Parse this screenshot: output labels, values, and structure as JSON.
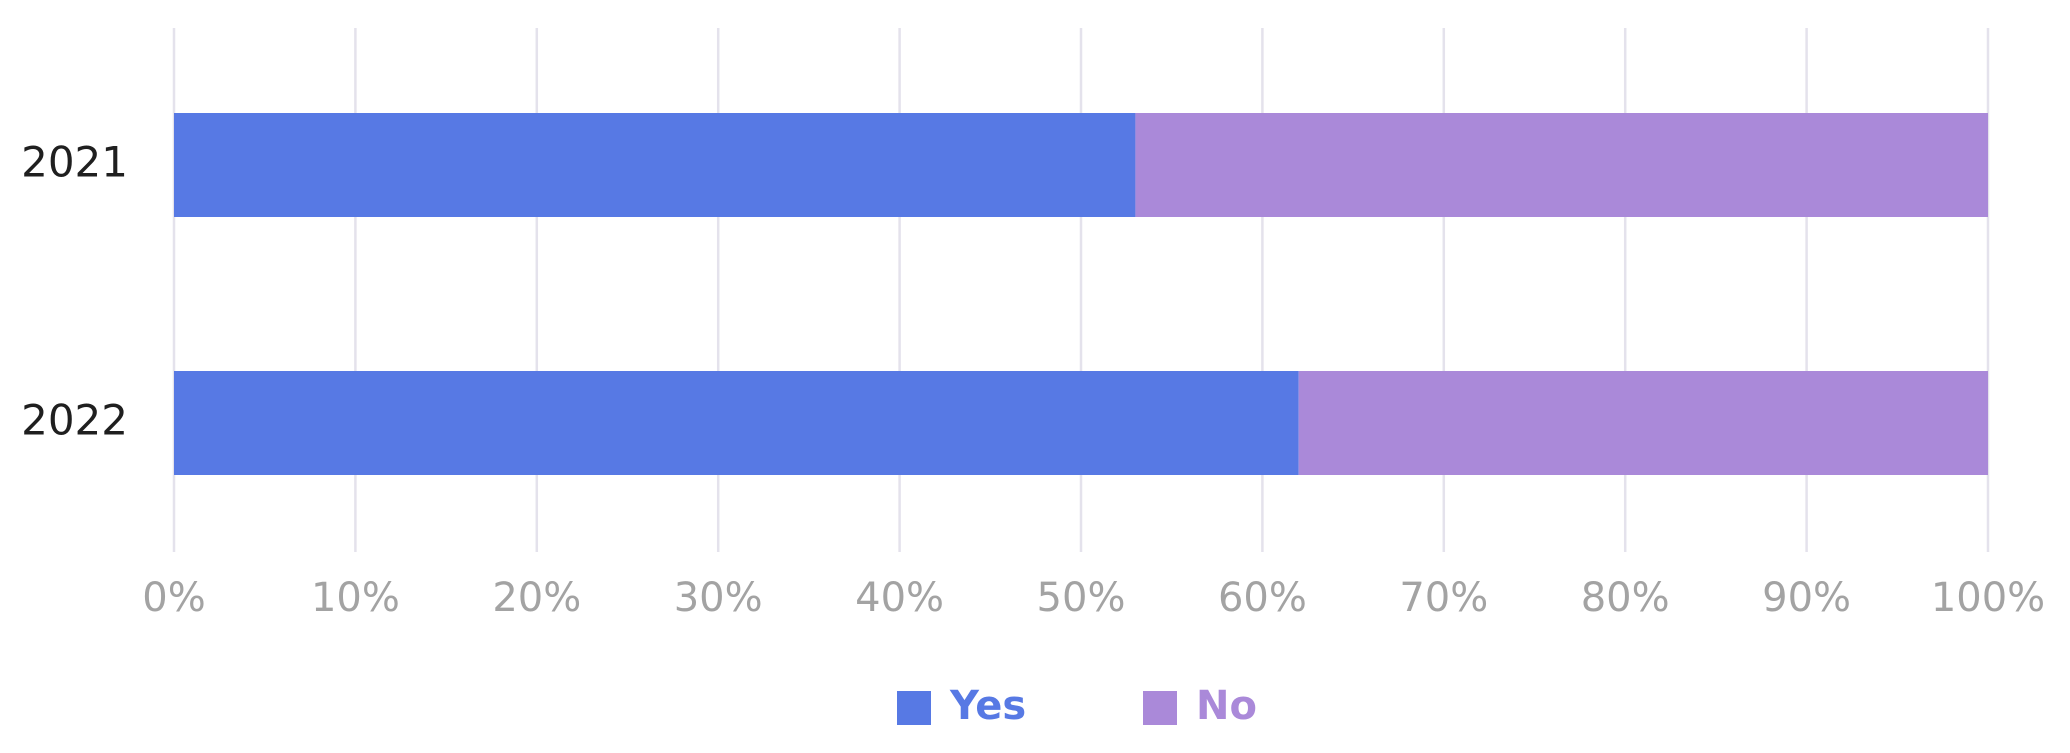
{
  "chart_data": {
    "type": "bar",
    "orientation": "horizontal",
    "stacked": true,
    "normalized_percent": true,
    "categories": [
      "2021",
      "2022"
    ],
    "series": [
      {
        "name": "Yes",
        "values": [
          53,
          62
        ],
        "color": "#5779e4"
      },
      {
        "name": "No",
        "values": [
          47,
          38
        ],
        "color": "#aa89d9"
      }
    ],
    "x_ticks": [
      "0%",
      "10%",
      "20%",
      "30%",
      "40%",
      "50%",
      "60%",
      "70%",
      "80%",
      "90%",
      "100%"
    ],
    "xlim": [
      0,
      100
    ],
    "grid": true,
    "legend_position": "bottom-center",
    "title": "",
    "xlabel": "",
    "ylabel": ""
  }
}
